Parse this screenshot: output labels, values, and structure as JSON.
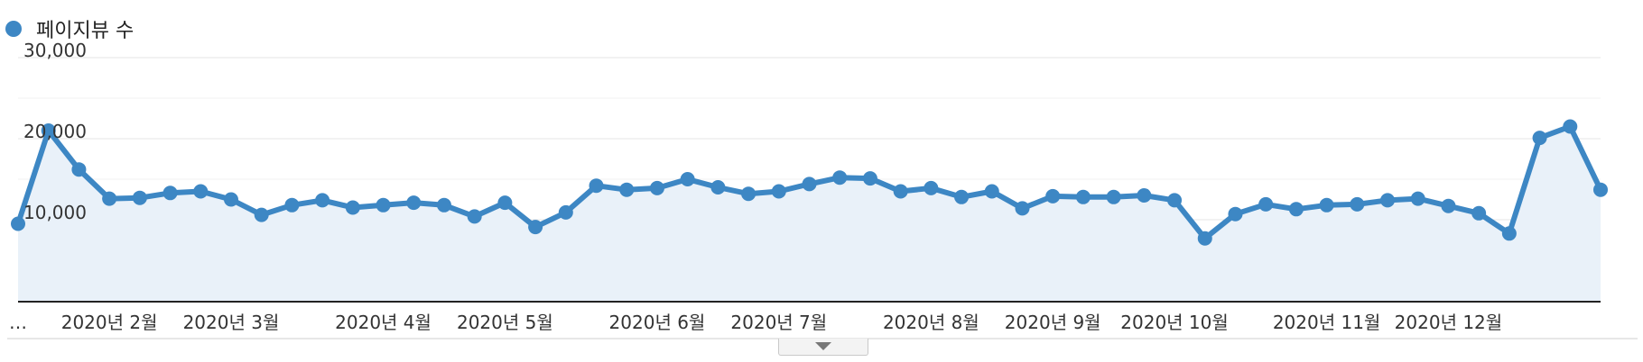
{
  "legend": {
    "series_label": "페이지뷰 수",
    "color": "#3d87c4"
  },
  "chart_data": {
    "type": "line",
    "series": [
      {
        "name": "페이지뷰 수",
        "color": "#3d87c4",
        "values": [
          9500,
          21000,
          16200,
          12600,
          12700,
          13300,
          13500,
          12500,
          10600,
          11800,
          12400,
          11500,
          11800,
          12100,
          11800,
          10400,
          12100,
          9100,
          10900,
          14200,
          13700,
          13900,
          15000,
          14000,
          13200,
          13500,
          14400,
          15200,
          15100,
          13500,
          13900,
          12800,
          13500,
          11400,
          12900,
          12800,
          12800,
          13000,
          12400,
          7700,
          10700,
          11900,
          11300,
          11800,
          11900,
          12400,
          12600,
          11700,
          10800,
          8300,
          20100,
          21500,
          13700
        ]
      }
    ],
    "ylim": [
      0,
      30000
    ],
    "yticks": [
      "10,000",
      "20,000",
      "30,000"
    ],
    "ytick_values": [
      10000,
      20000,
      30000
    ],
    "xtick_labels": [
      "…",
      "2020년 2월",
      "2020년 3월",
      "2020년 4월",
      "2020년 5월",
      "2020년 6월",
      "2020년 7월",
      "2020년 8월",
      "2020년 9월",
      "2020년 10월",
      "2020년 11월",
      "2020년 12월"
    ],
    "xtick_point_index": [
      null,
      3,
      7,
      12,
      16,
      21,
      25,
      30,
      34,
      38,
      43,
      47
    ],
    "grid": true,
    "legend_position": "top-left"
  }
}
